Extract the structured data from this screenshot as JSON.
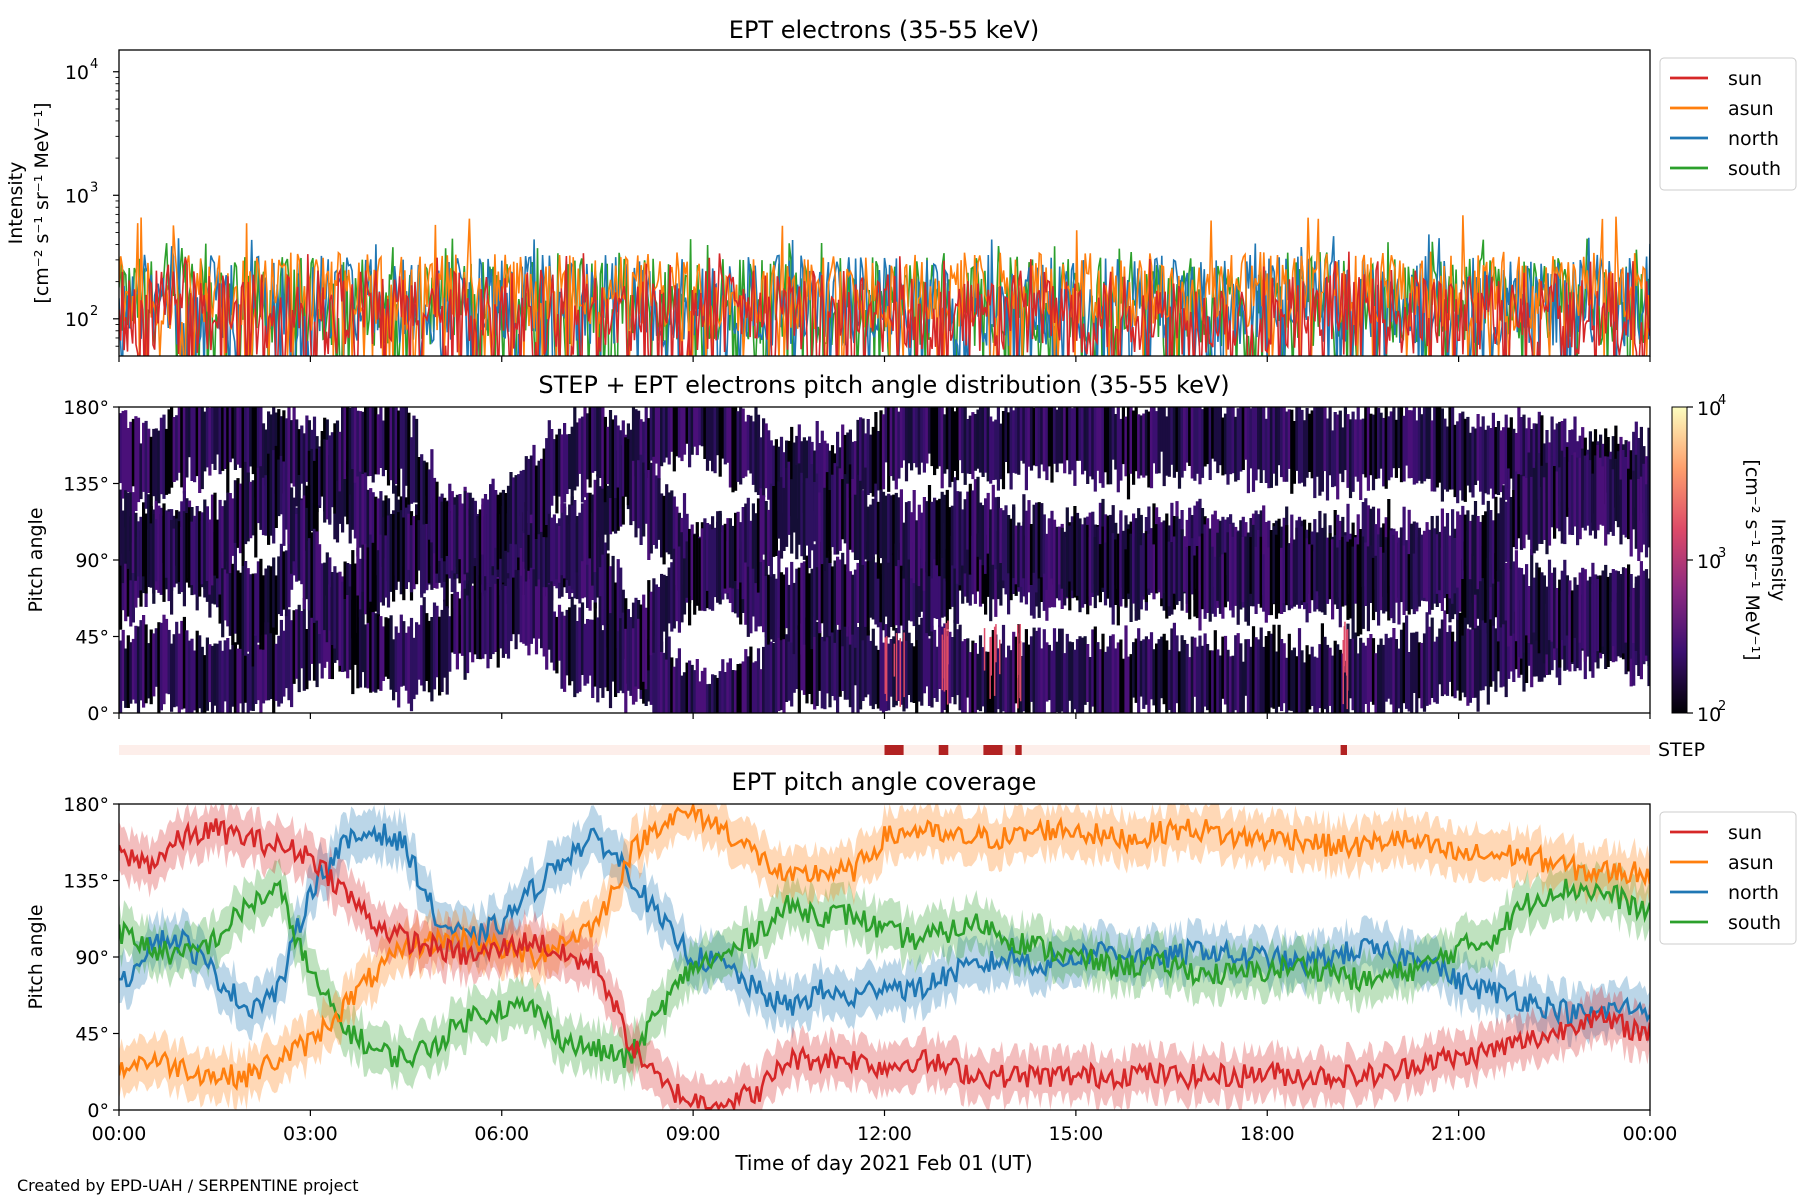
{
  "figure": {
    "credit": "Created by EPD-UAH / SERPENTINE project",
    "xlabel": "Time of day 2021 Feb 01 (UT)",
    "time_ticks": [
      "00:00",
      "03:00",
      "06:00",
      "09:00",
      "12:00",
      "15:00",
      "18:00",
      "21:00",
      "00:00"
    ]
  },
  "colors": {
    "sun": "#d62728",
    "asun": "#ff7f0e",
    "north": "#1f77b4",
    "south": "#2ca02c",
    "step_bar": "#b22222",
    "step_bg": "#fdeeea"
  },
  "panel1": {
    "title": "EPT electrons (35-55 keV)",
    "ylabel_line1": "Intensity",
    "ylabel_line2": "[cm⁻² s⁻¹ sr⁻¹ MeV⁻¹]",
    "y_ticks": [
      {
        "base": "10",
        "exp": "4",
        "value": 10000
      },
      {
        "base": "10",
        "exp": "3",
        "value": 1000
      },
      {
        "base": "10",
        "exp": "2",
        "value": 100
      }
    ]
  },
  "panel2": {
    "title": "STEP + EPT electrons pitch angle distribution (35-55 keV)",
    "ylabel": "Pitch angle",
    "y_ticks": [
      "180°",
      "135°",
      "90°",
      "45°",
      "0°"
    ],
    "colorbar_label": "Intensity",
    "colorbar_units": "[cm⁻² s⁻¹ sr⁻¹ MeV⁻¹]",
    "colorbar_ticks": [
      {
        "base": "10",
        "exp": "4"
      },
      {
        "base": "10",
        "exp": "3"
      },
      {
        "base": "10",
        "exp": "2"
      }
    ]
  },
  "step_strip": {
    "label": "STEP"
  },
  "panel3": {
    "title": "EPT pitch angle coverage",
    "ylabel": "Pitch angle",
    "y_ticks": [
      "180°",
      "135°",
      "90°",
      "45°",
      "0°"
    ]
  },
  "legend": [
    "sun",
    "asun",
    "north",
    "south"
  ],
  "chart_data": [
    {
      "type": "line",
      "title": "EPT electrons (35-55 keV)",
      "xlabel": "",
      "ylabel": "Intensity [cm⁻² s⁻¹ sr⁻¹ MeV⁻¹]",
      "yscale": "log",
      "ylim": [
        50,
        15000
      ],
      "x_range_hours": [
        0,
        24
      ],
      "legend_position": "right",
      "series": [
        {
          "name": "sun",
          "typical_range": [
            50,
            250
          ],
          "peak": 350
        },
        {
          "name": "asun",
          "typical_range": [
            80,
            350
          ],
          "peak": 690
        },
        {
          "name": "north",
          "typical_range": [
            60,
            330
          ],
          "peak": 500
        },
        {
          "name": "south",
          "typical_range": [
            60,
            320
          ],
          "peak": 450
        }
      ]
    },
    {
      "type": "heatmap",
      "title": "STEP + EPT electrons pitch angle distribution (35-55 keV)",
      "ylabel": "Pitch angle",
      "ylim": [
        0,
        180
      ],
      "colorbar": {
        "label": "Intensity",
        "scale": "log",
        "range": [
          100,
          10000
        ]
      },
      "step_intervals_hours": [
        [
          12.0,
          12.3
        ],
        [
          12.85,
          13.0
        ],
        [
          13.55,
          13.85
        ],
        [
          14.05,
          14.15
        ],
        [
          19.15,
          19.25
        ]
      ]
    },
    {
      "type": "line",
      "title": "EPT pitch angle coverage",
      "xlabel": "Time of day 2021 Feb 01 (UT)",
      "ylabel": "Pitch angle",
      "ylim": [
        0,
        180
      ],
      "legend_position": "right",
      "x": [
        0,
        0.5,
        1,
        1.5,
        2,
        2.5,
        3,
        3.5,
        4,
        4.5,
        5,
        5.5,
        6,
        6.5,
        7,
        7.5,
        8,
        8.5,
        9,
        9.5,
        10,
        10.5,
        11,
        11.5,
        12,
        12.5,
        13,
        13.5,
        14,
        14.5,
        15,
        15.5,
        16,
        16.5,
        17,
        17.5,
        18,
        18.5,
        19,
        19.5,
        20,
        20.5,
        21,
        21.5,
        22,
        22.5,
        23,
        23.5,
        24
      ],
      "series": [
        {
          "name": "sun",
          "values": [
            150,
            145,
            160,
            165,
            160,
            155,
            150,
            130,
            110,
            100,
            95,
            90,
            95,
            100,
            90,
            85,
            40,
            15,
            5,
            5,
            10,
            30,
            30,
            30,
            25,
            30,
            25,
            20,
            20,
            20,
            20,
            20,
            22,
            20,
            20,
            20,
            22,
            20,
            20,
            20,
            22,
            30,
            30,
            35,
            40,
            45,
            55,
            50,
            45
          ]
        },
        {
          "name": "asun",
          "values": [
            25,
            30,
            25,
            20,
            20,
            30,
            40,
            60,
            80,
            95,
            100,
            100,
            95,
            90,
            100,
            110,
            150,
            170,
            175,
            165,
            150,
            135,
            140,
            140,
            160,
            165,
            160,
            160,
            160,
            165,
            165,
            160,
            160,
            165,
            165,
            160,
            160,
            160,
            155,
            155,
            160,
            155,
            150,
            150,
            150,
            145,
            140,
            140,
            140
          ]
        },
        {
          "name": "north",
          "values": [
            70,
            100,
            100,
            80,
            60,
            70,
            130,
            155,
            165,
            155,
            110,
            100,
            110,
            130,
            150,
            160,
            140,
            110,
            90,
            85,
            70,
            60,
            70,
            65,
            75,
            70,
            80,
            85,
            90,
            85,
            90,
            95,
            90,
            90,
            95,
            90,
            90,
            85,
            90,
            95,
            90,
            90,
            75,
            70,
            65,
            60,
            55,
            60,
            60
          ]
        },
        {
          "name": "south",
          "values": [
            105,
            95,
            90,
            100,
            120,
            130,
            80,
            50,
            35,
            30,
            40,
            55,
            60,
            60,
            40,
            35,
            30,
            60,
            85,
            90,
            105,
            120,
            115,
            115,
            105,
            100,
            105,
            110,
            100,
            95,
            90,
            85,
            85,
            85,
            80,
            80,
            82,
            85,
            82,
            75,
            80,
            85,
            95,
            100,
            120,
            130,
            130,
            125,
            115
          ]
        }
      ]
    }
  ]
}
